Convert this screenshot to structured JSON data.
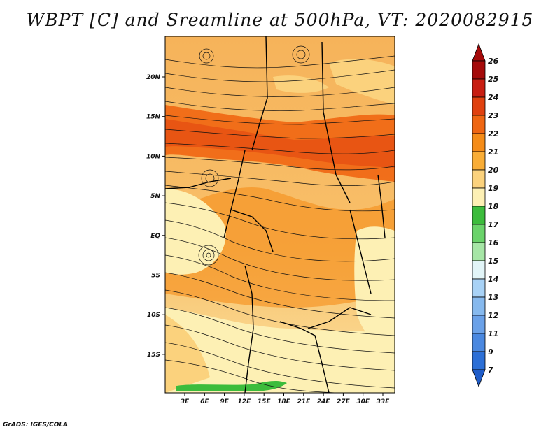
{
  "title": "WBPT [C] and Sreamline at 500hPa, VT: 2020082915",
  "credit": "GrADS: IGES/COLA",
  "map": {
    "lat_ticks": [
      "20N",
      "15N",
      "10N",
      "5N",
      "EQ",
      "5S",
      "10S",
      "15S"
    ],
    "lon_ticks": [
      "3E",
      "6E",
      "9E",
      "12E",
      "15E",
      "18E",
      "21E",
      "24E",
      "27E",
      "30E",
      "33E"
    ],
    "field": "wet bulb potential temperature",
    "streamlines": "500hPa wind streamlines"
  },
  "colorbar": {
    "labels": [
      "26",
      "25",
      "24",
      "23",
      "22",
      "21",
      "20",
      "19",
      "18",
      "17",
      "16",
      "15",
      "14",
      "13",
      "12",
      "11",
      "9",
      "7"
    ],
    "colors": [
      "#a50a0a",
      "#c81e12",
      "#e0410f",
      "#ef6612",
      "#f58c18",
      "#f9ad36",
      "#fbd27d",
      "#fdf0b4",
      "#3cbc3c",
      "#6ad36a",
      "#a6e6a6",
      "#e2f5f8",
      "#a8d2f6",
      "#86b9ee",
      "#6aa1e8",
      "#4a88e0",
      "#2c6fd6",
      "#1f5cc8"
    ]
  }
}
